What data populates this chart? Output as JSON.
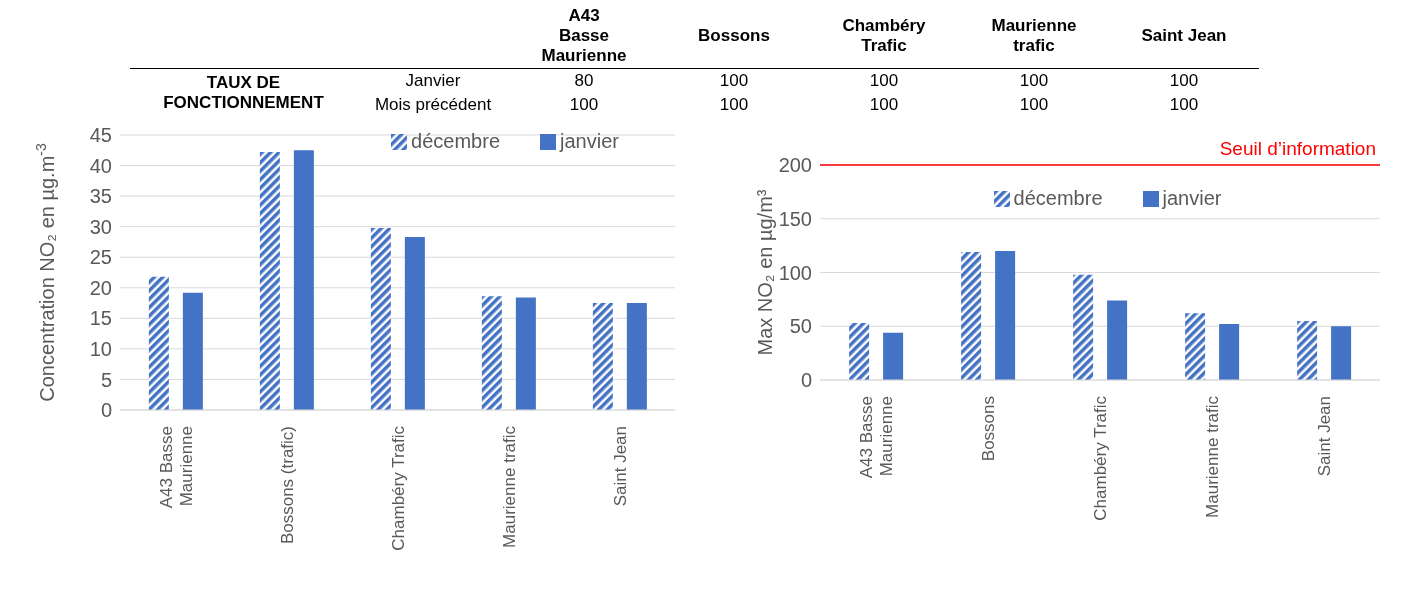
{
  "chart_data": [
    {
      "type": "other",
      "title": "TAUX DE FONCTIONNEMENT",
      "data_labels": true,
      "categories": [
        "A43 Basse Maurienne",
        "Bossons",
        "Chambéry Trafic",
        "Maurienne trafic",
        "Saint Jean"
      ],
      "series": [
        {
          "name": "Janvier",
          "values": [
            80,
            100,
            100,
            100,
            100
          ]
        },
        {
          "name": "Mois précédent",
          "values": [
            100,
            100,
            100,
            100,
            100
          ]
        }
      ]
    },
    {
      "type": "bar",
      "ylabel": "Concentration NO₂ en µg.m$^{-3}$",
      "categories": [
        "A43 Basse Maurienne",
        "Bossons (trafic)",
        "Chambéry Trafic",
        "Maurienne trafic",
        "Saint Jean"
      ],
      "series": [
        {
          "name": "décembre",
          "color": "#4472c4",
          "values": [
            21.8,
            42.2,
            29.8,
            18.6,
            17.5
          ]
        },
        {
          "name": "janvier",
          "color": "#4472c4",
          "values": [
            19.2,
            42.5,
            28.3,
            18.4,
            17.5
          ]
        }
      ],
      "ylim": [
        0,
        45
      ],
      "yticks": [
        0,
        5,
        10,
        15,
        20,
        25,
        30,
        35,
        40,
        45
      ],
      "grid": "y",
      "legend": "top"
    },
    {
      "type": "bar",
      "ylabel": "Max NO₂ en µg/m³",
      "categories": [
        "A43 Basse Maurienne",
        "Bossons",
        "Chambéry Trafic",
        "Maurienne trafic",
        "Saint Jean"
      ],
      "series": [
        {
          "name": "décembre",
          "color": "#4472c4",
          "values": [
            53,
            119,
            98,
            62,
            55
          ]
        },
        {
          "name": "janvier",
          "color": "#4472c4",
          "values": [
            44,
            120,
            74,
            52,
            50
          ]
        }
      ],
      "ylim": [
        0,
        200
      ],
      "yticks": [
        0,
        50,
        100,
        150,
        200
      ],
      "grid": "y",
      "legend": "top",
      "ref_lines": [
        {
          "axis": "y",
          "value": 200,
          "label": "Seuil d’information",
          "color": "#ff0000"
        }
      ]
    }
  ]
}
